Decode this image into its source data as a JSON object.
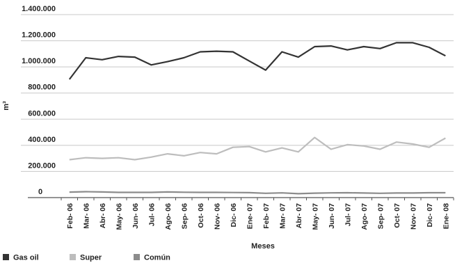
{
  "chart_data": {
    "type": "line",
    "title": "",
    "xlabel": "Meses",
    "ylabel": "m³",
    "ylim": [
      0,
      1400000
    ],
    "y_ticks": [
      "0",
      "200.000",
      "400.000",
      "600.000",
      "800.000",
      "1.000.000",
      "1.200.000",
      "1.400.000"
    ],
    "grid": "horizontal",
    "legend_position": "bottom-left",
    "categories": [
      "Feb- 06",
      "Mar- 06",
      "Abr- 06",
      "May- 06",
      "Jun- 06",
      "Jul- 06",
      "Ago- 06",
      "Sep- 06",
      "Oct- 06",
      "Nov- 06",
      "Dic- 06",
      "Ene- 07",
      "Feb- 07",
      "Mar- 07",
      "Abr- 07",
      "May- 07",
      "Jun- 07",
      "Jul- 07",
      "Ago- 07",
      "Sep- 07",
      "Oct- 07",
      "Nov- 07",
      "Dic- 07",
      "Ene- 08"
    ],
    "series": [
      {
        "name": "Gas oil",
        "color": "#333333",
        "values": [
          905000,
          1070000,
          1055000,
          1080000,
          1075000,
          1015000,
          1040000,
          1070000,
          1115000,
          1120000,
          1115000,
          1045000,
          975000,
          1115000,
          1075000,
          1155000,
          1160000,
          1130000,
          1155000,
          1140000,
          1185000,
          1185000,
          1150000,
          1085000
        ]
      },
      {
        "name": "Super",
        "color": "#bdbdbd",
        "values": [
          290000,
          305000,
          300000,
          305000,
          290000,
          310000,
          335000,
          320000,
          345000,
          335000,
          385000,
          390000,
          350000,
          380000,
          350000,
          460000,
          370000,
          405000,
          395000,
          370000,
          425000,
          410000,
          385000,
          455000
        ]
      },
      {
        "name": "Común",
        "color": "#8c8c8c",
        "values": [
          42000,
          45000,
          43000,
          40000,
          40000,
          40000,
          43000,
          41000,
          40000,
          40000,
          39000,
          38000,
          33000,
          36000,
          30000,
          34000,
          36000,
          37000,
          35000,
          33000,
          35000,
          35000,
          37000,
          37000
        ]
      }
    ]
  }
}
